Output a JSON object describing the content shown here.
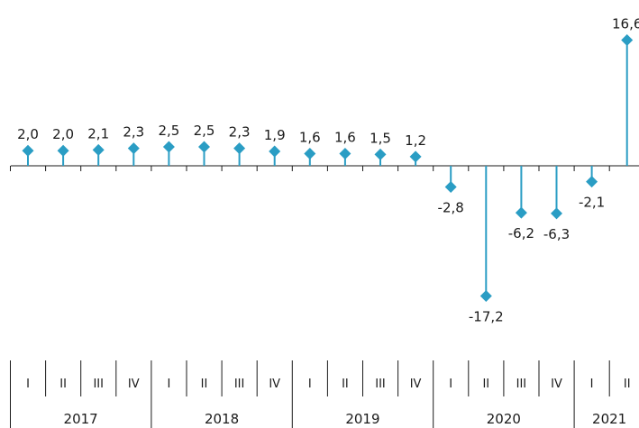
{
  "chart_data": {
    "type": "lollipop",
    "title": "",
    "xlabel": "",
    "ylabel": "",
    "years": [
      "2017",
      "2018",
      "2019",
      "2020",
      "2021"
    ],
    "categories": [
      "2017-I",
      "2017-II",
      "2017-III",
      "2017-IV",
      "2018-I",
      "2018-II",
      "2018-III",
      "2018-IV",
      "2019-I",
      "2019-II",
      "2019-III",
      "2019-IV",
      "2020-I",
      "2020-II",
      "2020-III",
      "2020-IV",
      "2021-I",
      "2021-II"
    ],
    "quarter_labels": [
      "I",
      "II",
      "III",
      "IV",
      "I",
      "II",
      "III",
      "IV",
      "I",
      "II",
      "III",
      "IV",
      "I",
      "II",
      "III",
      "IV",
      "I",
      "II"
    ],
    "values": [
      2.0,
      2.0,
      2.1,
      2.3,
      2.5,
      2.5,
      2.3,
      1.9,
      1.6,
      1.6,
      1.5,
      1.2,
      -2.8,
      -17.2,
      -6.2,
      -6.3,
      -2.1,
      16.6
    ],
    "value_labels": [
      "2,0",
      "2,0",
      "2,1",
      "2,3",
      "2,5",
      "2,5",
      "2,3",
      "1,9",
      "1,6",
      "1,6",
      "1,5",
      "1,2",
      "-2,8",
      "-17,2",
      "-6,2",
      "-6,3",
      "-2,1",
      "16,6"
    ],
    "ylim": [
      -17.2,
      16.6
    ],
    "grid": false,
    "legend": "none",
    "colors": {
      "series": "#2a9dc4",
      "axis": "#1a1a1a",
      "text": "#1a1a1a"
    }
  }
}
